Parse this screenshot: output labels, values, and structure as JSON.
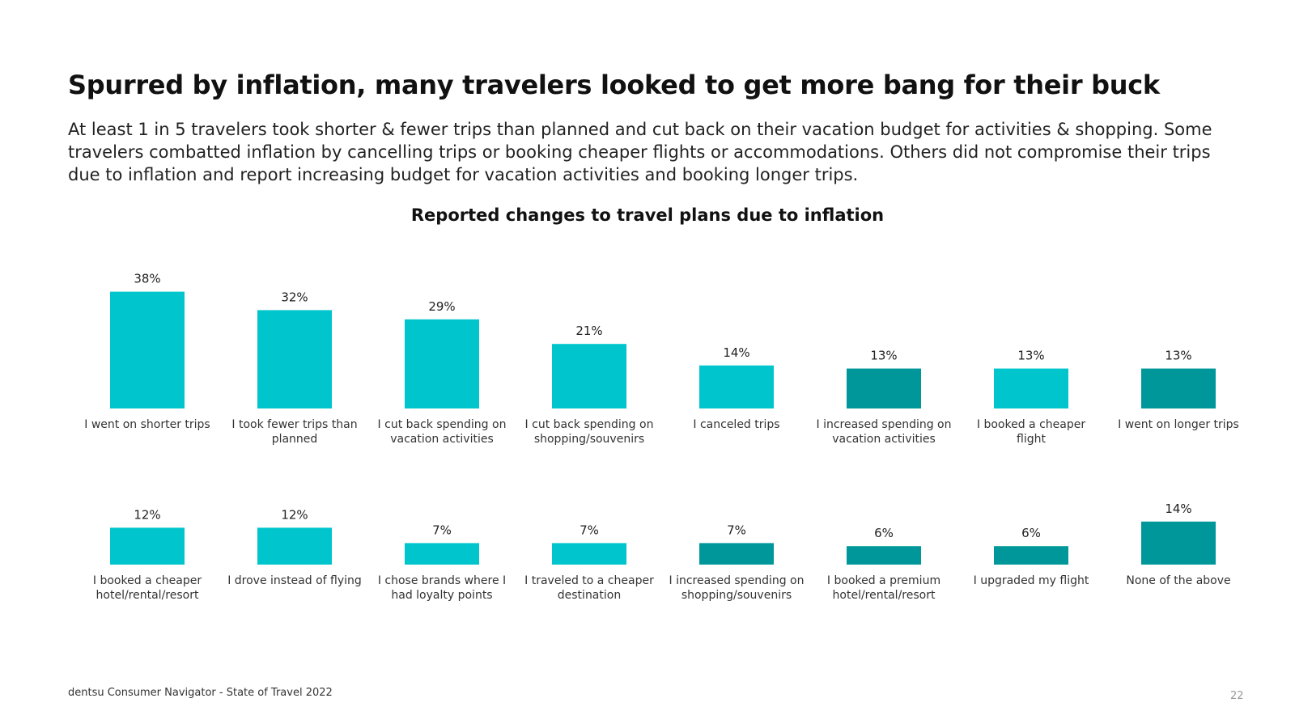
{
  "slide": {
    "headline": "Spurred by inflation, many travelers looked to get more bang for their buck",
    "subtext": "At least 1 in 5 travelers took shorter & fewer trips than planned and cut back on their vacation budget for activities & shopping. Some travelers combatted inflation by cancelling trips or booking cheaper flights or accommodations. Others did not compromise their trips due to inflation and report increasing budget for vacation activities and booking longer trips.",
    "footer_source": "dentsu Consumer Navigator - State of Travel 2022",
    "page_number": "22"
  },
  "colors": {
    "light_teal": "#00C5CD",
    "dark_teal": "#00979A"
  },
  "chart_data": {
    "type": "bar",
    "title": "Reported changes to travel plans due to inflation",
    "unit": "%",
    "ylim": [
      0,
      40
    ],
    "value_axis_visible": false,
    "rows": [
      {
        "categories": [
          [
            "I went on shorter trips"
          ],
          [
            "I took fewer trips than",
            "planned"
          ],
          [
            "I cut back spending on",
            "vacation activities"
          ],
          [
            "I cut back spending on",
            "shopping/souvenirs"
          ],
          [
            "I canceled trips"
          ],
          [
            "I increased spending on",
            "vacation activities"
          ],
          [
            "I booked a cheaper",
            "flight"
          ],
          [
            "I went on longer trips"
          ]
        ],
        "values": [
          38,
          32,
          29,
          21,
          14,
          13,
          13,
          13
        ],
        "labels": [
          "38%",
          "32%",
          "29%",
          "21%",
          "14%",
          "13%",
          "13%",
          "13%"
        ],
        "colors": [
          "light_teal",
          "light_teal",
          "light_teal",
          "light_teal",
          "light_teal",
          "dark_teal",
          "light_teal",
          "dark_teal"
        ]
      },
      {
        "categories": [
          [
            "I booked a cheaper",
            "hotel/rental/resort"
          ],
          [
            "I drove instead of flying"
          ],
          [
            "I chose brands where I",
            "had loyalty points"
          ],
          [
            "I traveled to a cheaper",
            "destination"
          ],
          [
            "I increased spending on",
            "shopping/souvenirs"
          ],
          [
            "I booked a premium",
            "hotel/rental/resort"
          ],
          [
            "I upgraded my flight"
          ],
          [
            "None of the above"
          ]
        ],
        "values": [
          12,
          12,
          7,
          7,
          7,
          6,
          6,
          14
        ],
        "labels": [
          "12%",
          "12%",
          "7%",
          "7%",
          "7%",
          "6%",
          "6%",
          "14%"
        ],
        "colors": [
          "light_teal",
          "light_teal",
          "light_teal",
          "light_teal",
          "dark_teal",
          "dark_teal",
          "dark_teal",
          "dark_teal"
        ]
      }
    ]
  }
}
